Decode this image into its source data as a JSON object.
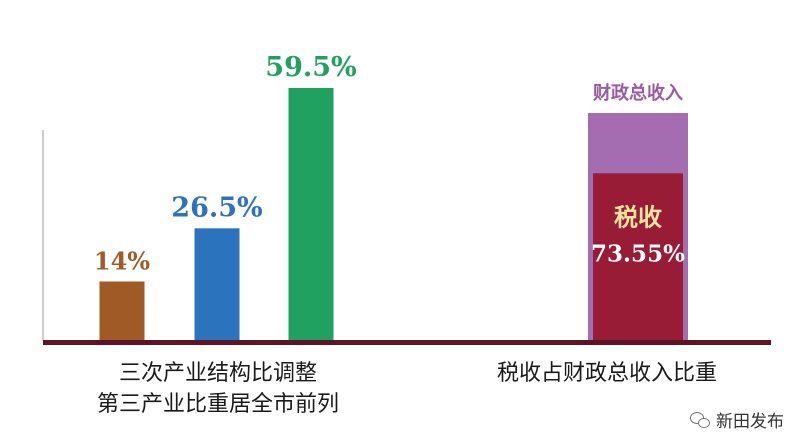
{
  "chart_data": [
    {
      "type": "bar",
      "categories": [
        "",
        "",
        ""
      ],
      "values": [
        14,
        26.5,
        59.5
      ],
      "value_labels": [
        "14%",
        "26.5%",
        "59.5%"
      ],
      "colors": [
        "#a05a25",
        "#2c73bd",
        "#21a160"
      ],
      "label_colors": [
        "#a05a25",
        "#2c73bd",
        "#21a160"
      ],
      "ylim": [
        0,
        70
      ],
      "caption_lines": [
        "三次产业结构比调整",
        "第三产业比重居全市前列"
      ],
      "grid": false
    },
    {
      "type": "bar",
      "subtype": "nested",
      "outer": {
        "label": "财政总收入",
        "value": 100,
        "color": "#a56db1",
        "label_color": "#9a5aa6"
      },
      "inner": {
        "label": "税收",
        "value": 73.55,
        "value_label": "73.55%",
        "color": "#981c35",
        "label_color": "#f2e4a0",
        "value_label_color": "#ffffff"
      },
      "caption": "税收占财政总收入比重",
      "grid": false
    }
  ],
  "axis_color": "#5e1424",
  "watermark": {
    "icon": "wechat-icon",
    "text": "新田发布"
  }
}
